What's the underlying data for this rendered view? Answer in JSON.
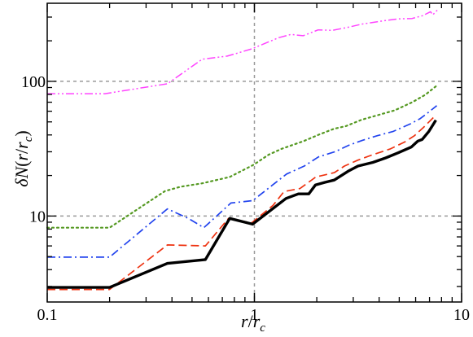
{
  "chart_data": {
    "type": "line",
    "xlabel": "r/r_c",
    "ylabel": "δN(r/r_c)",
    "xscale": "log",
    "yscale": "log",
    "xlim": [
      0.1,
      10
    ],
    "ylim": [
      2.3,
      380
    ],
    "x_ticks": [
      {
        "value": 0.1,
        "label": "0.1"
      },
      {
        "value": 1,
        "label": "1"
      },
      {
        "value": 10,
        "label": "10"
      }
    ],
    "y_ticks": [
      {
        "value": 10,
        "label": "10"
      },
      {
        "value": 100,
        "label": "100"
      }
    ],
    "grid_x": [
      1
    ],
    "grid_y": [
      10,
      100
    ],
    "series": [
      {
        "style": "dashdotdot",
        "color": "#ff44ff",
        "width": 1.5,
        "x": [
          0.1,
          0.19,
          0.38,
          0.56,
          0.74,
          0.97,
          1.31,
          1.5,
          1.72,
          2.03,
          2.38,
          2.87,
          3.3,
          4.29,
          4.94,
          5.77,
          6.48,
          7.08,
          7.26,
          7.65
        ],
        "y": [
          81,
          81,
          96,
          146,
          154,
          174,
          211,
          223,
          218,
          241,
          239,
          253,
          266,
          283,
          291,
          293,
          307,
          329,
          312,
          339
        ]
      },
      {
        "style": "dotted",
        "color": "#559922",
        "width": 2.2,
        "x": [
          0.1,
          0.2,
          0.37,
          0.44,
          0.56,
          0.76,
          0.99,
          1.17,
          1.35,
          1.73,
          2.07,
          2.43,
          2.76,
          3.31,
          4.0,
          4.76,
          5.78,
          6.68,
          7.62
        ],
        "y": [
          8.2,
          8.2,
          15.3,
          16.5,
          17.5,
          19.5,
          24.0,
          28.5,
          31.5,
          36.0,
          40.5,
          44.5,
          46.5,
          52.0,
          56.5,
          61.0,
          70.0,
          79.5,
          93.5
        ]
      },
      {
        "style": "dashdot",
        "color": "#2244ee",
        "width": 1.7,
        "x": [
          0.1,
          0.2,
          0.38,
          0.48,
          0.57,
          0.77,
          0.98,
          1.43,
          1.74,
          2.04,
          2.45,
          2.85,
          3.32,
          3.92,
          4.68,
          5.69,
          6.32,
          6.83,
          7.59
        ],
        "y": [
          4.95,
          4.95,
          11.3,
          9.6,
          8.2,
          12.5,
          13.0,
          20.5,
          23.5,
          27.5,
          30.0,
          33.5,
          36.5,
          39.5,
          42.5,
          48.5,
          53.0,
          58.0,
          66.0
        ]
      },
      {
        "style": "dashed",
        "color": "#ee3311",
        "width": 1.7,
        "x": [
          0.1,
          0.2,
          0.38,
          0.58,
          0.75,
          0.97,
          1.23,
          1.39,
          1.66,
          1.98,
          2.43,
          2.72,
          3.16,
          3.72,
          4.53,
          5.32,
          5.92,
          6.55,
          7.54
        ],
        "y": [
          2.85,
          2.85,
          6.1,
          6.0,
          9.6,
          8.9,
          12.0,
          15.2,
          16.0,
          19.5,
          21.0,
          23.5,
          26.0,
          28.5,
          31.5,
          35.5,
          39.5,
          45.5,
          56.5
        ]
      },
      {
        "style": "solid",
        "color": "#000000",
        "width": 3.4,
        "x": [
          0.1,
          0.2,
          0.38,
          0.58,
          0.76,
          0.98,
          1.42,
          1.63,
          1.83,
          1.97,
          2.19,
          2.43,
          2.83,
          3.16,
          3.73,
          4.3,
          4.94,
          5.71,
          6.15,
          6.45,
          6.95,
          7.51
        ],
        "y": [
          2.95,
          2.95,
          4.45,
          4.75,
          9.6,
          8.7,
          13.5,
          14.6,
          14.6,
          17.0,
          17.8,
          18.5,
          21.5,
          23.5,
          25.0,
          27.0,
          29.5,
          32.5,
          36.0,
          37.0,
          42.5,
          51.5
        ]
      }
    ]
  }
}
